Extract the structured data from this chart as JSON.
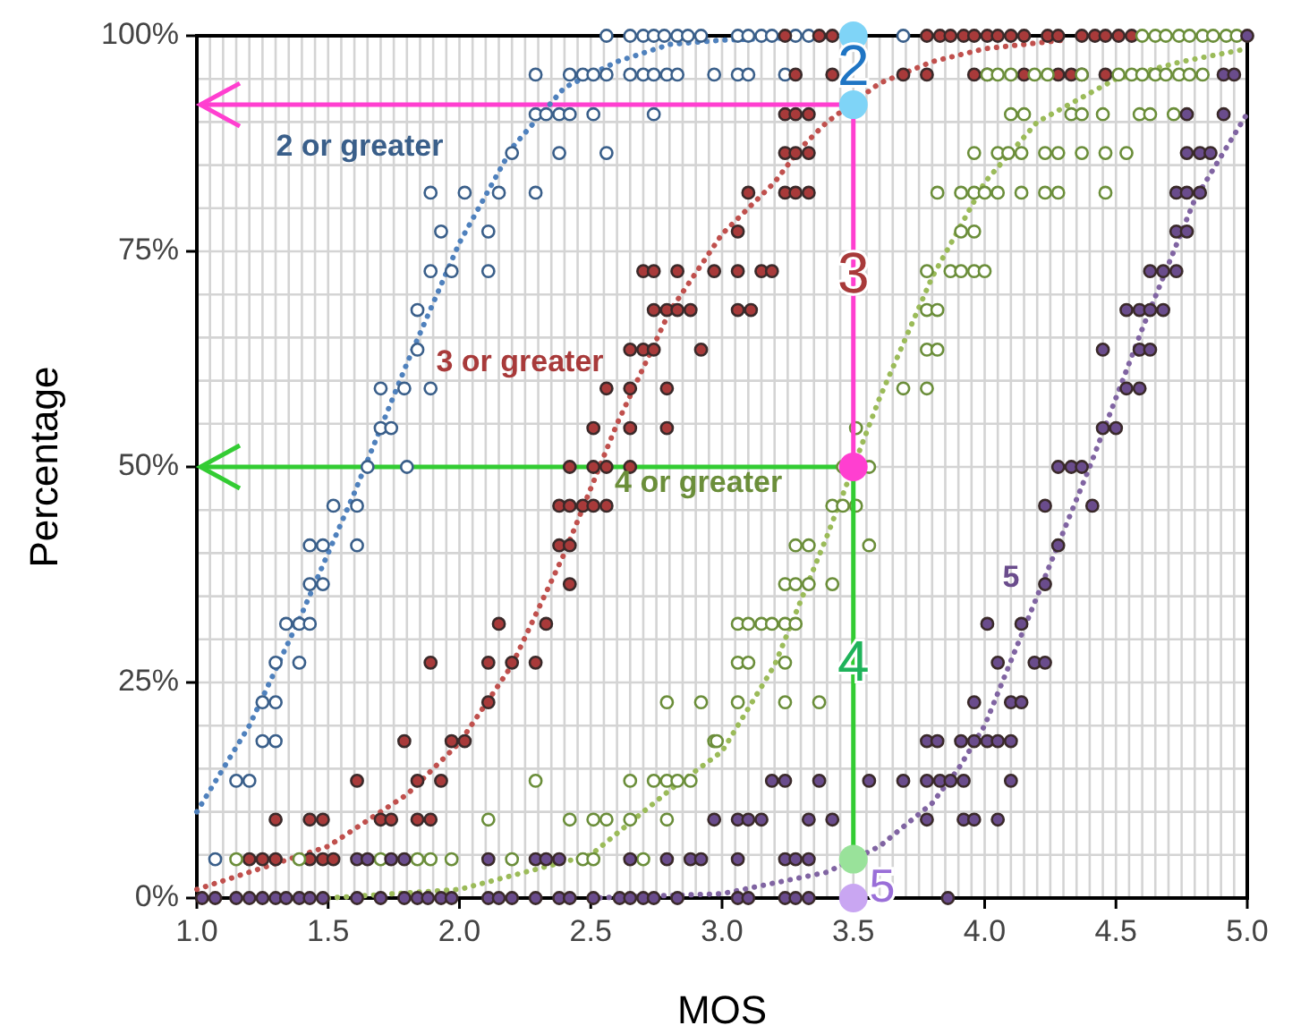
{
  "chart_data": {
    "type": "scatter",
    "xlabel": "MOS",
    "ylabel": "Percentage",
    "xlim": [
      1,
      5
    ],
    "ylim": [
      0,
      100
    ],
    "xticks": [
      {
        "value": 1,
        "label": "1.0"
      },
      {
        "value": 1.5,
        "label": "1.5"
      },
      {
        "value": 2,
        "label": "2.0"
      },
      {
        "value": 2.5,
        "label": "2.5"
      },
      {
        "value": 3,
        "label": "3.0"
      },
      {
        "value": 3.5,
        "label": "3.5"
      },
      {
        "value": 4,
        "label": "4.0"
      },
      {
        "value": 4.5,
        "label": "4.5"
      },
      {
        "value": 5,
        "label": "5.0"
      },
      {
        "value": 1.05,
        "label": null
      },
      {
        "value": 1.1,
        "label": null
      },
      {
        "value": 1.15,
        "label": null
      },
      {
        "value": 1.2,
        "label": null
      },
      {
        "value": 1.25,
        "label": null
      },
      {
        "value": 1.3,
        "label": null
      },
      {
        "value": 1.35,
        "label": null
      },
      {
        "value": 1.4,
        "label": null
      },
      {
        "value": 1.45,
        "label": null
      },
      {
        "value": 1.55,
        "label": null
      },
      {
        "value": 1.6,
        "label": null
      },
      {
        "value": 1.65,
        "label": null
      },
      {
        "value": 1.7,
        "label": null
      },
      {
        "value": 1.75,
        "label": null
      },
      {
        "value": 1.8,
        "label": null
      },
      {
        "value": 1.85,
        "label": null
      },
      {
        "value": 1.9,
        "label": null
      },
      {
        "value": 1.95,
        "label": null
      },
      {
        "value": 2.05,
        "label": null
      },
      {
        "value": 2.1,
        "label": null
      },
      {
        "value": 2.15,
        "label": null
      },
      {
        "value": 2.2,
        "label": null
      },
      {
        "value": 2.25,
        "label": null
      },
      {
        "value": 2.3,
        "label": null
      },
      {
        "value": 2.35,
        "label": null
      },
      {
        "value": 2.4,
        "label": null
      },
      {
        "value": 2.45,
        "label": null
      },
      {
        "value": 2.55,
        "label": null
      },
      {
        "value": 2.6,
        "label": null
      },
      {
        "value": 2.65,
        "label": null
      },
      {
        "value": 2.7,
        "label": null
      },
      {
        "value": 2.75,
        "label": null
      },
      {
        "value": 2.8,
        "label": null
      },
      {
        "value": 2.85,
        "label": null
      },
      {
        "value": 2.9,
        "label": null
      },
      {
        "value": 2.95,
        "label": null
      },
      {
        "value": 3.05,
        "label": null
      },
      {
        "value": 3.1,
        "label": null
      },
      {
        "value": 3.15,
        "label": null
      },
      {
        "value": 3.2,
        "label": null
      },
      {
        "value": 3.25,
        "label": null
      },
      {
        "value": 3.3,
        "label": null
      },
      {
        "value": 3.35,
        "label": null
      },
      {
        "value": 3.4,
        "label": null
      },
      {
        "value": 3.45,
        "label": null
      },
      {
        "value": 3.55,
        "label": null
      },
      {
        "value": 3.6,
        "label": null
      },
      {
        "value": 3.65,
        "label": null
      },
      {
        "value": 3.7,
        "label": null
      },
      {
        "value": 3.75,
        "label": null
      },
      {
        "value": 3.8,
        "label": null
      },
      {
        "value": 3.85,
        "label": null
      },
      {
        "value": 3.9,
        "label": null
      },
      {
        "value": 3.95,
        "label": null
      },
      {
        "value": 4.05,
        "label": null
      },
      {
        "value": 4.1,
        "label": null
      },
      {
        "value": 4.15,
        "label": null
      },
      {
        "value": 4.2,
        "label": null
      },
      {
        "value": 4.25,
        "label": null
      },
      {
        "value": 4.3,
        "label": null
      },
      {
        "value": 4.35,
        "label": null
      },
      {
        "value": 4.4,
        "label": null
      },
      {
        "value": 4.45,
        "label": null
      },
      {
        "value": 4.55,
        "label": null
      },
      {
        "value": 4.6,
        "label": null
      },
      {
        "value": 4.65,
        "label": null
      },
      {
        "value": 4.7,
        "label": null
      },
      {
        "value": 4.75,
        "label": null
      },
      {
        "value": 4.8,
        "label": null
      },
      {
        "value": 4.85,
        "label": null
      },
      {
        "value": 4.9,
        "label": null
      },
      {
        "value": 4.95,
        "label": null
      }
    ],
    "yticks": [
      {
        "value": 0,
        "label": "0%"
      },
      {
        "value": 25,
        "label": "25%"
      },
      {
        "value": 50,
        "label": "50%"
      },
      {
        "value": 75,
        "label": "75%"
      },
      {
        "value": 100,
        "label": "100%"
      },
      {
        "value": 5,
        "label": null
      },
      {
        "value": 10,
        "label": null
      },
      {
        "value": 15,
        "label": null
      },
      {
        "value": 20,
        "label": null
      },
      {
        "value": 30,
        "label": null
      },
      {
        "value": 35,
        "label": null
      },
      {
        "value": 40,
        "label": null
      },
      {
        "value": 45,
        "label": null
      },
      {
        "value": 55,
        "label": null
      },
      {
        "value": 60,
        "label": null
      },
      {
        "value": 65,
        "label": null
      },
      {
        "value": 70,
        "label": null
      },
      {
        "value": 80,
        "label": null
      },
      {
        "value": 85,
        "label": null
      },
      {
        "value": 90,
        "label": null
      },
      {
        "value": 95,
        "label": null
      }
    ],
    "grid": true,
    "ref_lines": [
      {
        "axis": "y",
        "value": 92,
        "color": "#ff3fd0"
      },
      {
        "axis": "y",
        "value": 50,
        "color": "#33cc33"
      }
    ],
    "annotations": [
      "2",
      "3",
      "4",
      "5"
    ],
    "series": [
      {
        "type": "line",
        "color": "#4f81bd",
        "line_style": "dotted",
        "marker": "none",
        "x": [
          1.0,
          1.2,
          1.4,
          1.6,
          1.8,
          2.0,
          2.2,
          2.4,
          2.6,
          2.8,
          3.0,
          3.5
        ],
        "values": [
          10,
          20,
          33,
          47,
          62,
          76,
          87,
          94,
          97,
          99,
          99.5,
          100
        ]
      },
      {
        "type": "line",
        "color": "#c0504d",
        "line_style": "dotted",
        "marker": "none",
        "x": [
          1.0,
          1.5,
          1.8,
          2.0,
          2.2,
          2.4,
          2.6,
          2.8,
          3.0,
          3.2,
          3.3,
          3.4,
          3.6,
          3.8,
          4.0,
          4.3
        ],
        "values": [
          1,
          6,
          12,
          18,
          27,
          40,
          55,
          68,
          77,
          83,
          87,
          90,
          94.5,
          97,
          98.5,
          99.5
        ]
      },
      {
        "type": "line",
        "color": "#9bbb59",
        "line_style": "dotted",
        "marker": "none",
        "x": [
          1.5,
          2.0,
          2.5,
          2.8,
          3.0,
          3.2,
          3.4,
          3.5,
          3.6,
          3.8,
          4.0,
          4.2,
          4.5,
          4.75,
          5.0
        ],
        "values": [
          0,
          1,
          5,
          12.5,
          17,
          27,
          42,
          50,
          58,
          72,
          83,
          90,
          95,
          97,
          98.5
        ]
      },
      {
        "type": "line",
        "color": "#8064a2",
        "line_style": "dotted",
        "marker": "none",
        "x": [
          2.5,
          3.0,
          3.4,
          3.6,
          3.8,
          3.9,
          4.0,
          4.2,
          4.4,
          4.6,
          4.8,
          5.0
        ],
        "values": [
          0,
          0.5,
          3,
          6,
          11,
          15,
          20,
          35,
          50,
          66,
          81,
          91
        ]
      },
      {
        "name": "2 or greater",
        "color": "#3a5f8a",
        "marker": "circle",
        "x": [
          2.56,
          2.65,
          2.7,
          2.74,
          2.78,
          2.83,
          2.87,
          2.92,
          3.06,
          3.1,
          3.15,
          3.19,
          3.28,
          3.33,
          3.69,
          2.29,
          2.42,
          2.47,
          2.51,
          2.56,
          2.65,
          2.7,
          2.74,
          2.79,
          2.83,
          2.97,
          3.06,
          3.1,
          3.24,
          2.29,
          2.33,
          2.38,
          2.42,
          2.51,
          2.74,
          2.2,
          2.38,
          2.56,
          1.89,
          2.02,
          2.15,
          2.29,
          1.93,
          2.11,
          1.89,
          1.97,
          2.11,
          1.84,
          1.84,
          1.7,
          1.79,
          1.89,
          1.7,
          1.74,
          1.65,
          1.8,
          1.52,
          1.61,
          1.43,
          1.48,
          1.61,
          1.43,
          1.48,
          1.34,
          1.39,
          1.43,
          1.3,
          1.39,
          1.25,
          1.3,
          1.25,
          1.3,
          1.15,
          1.2,
          1.07
        ],
        "values": [
          100,
          100,
          100,
          100,
          100,
          100,
          100,
          100,
          100,
          100,
          100,
          100,
          100,
          100,
          100,
          95.5,
          95.5,
          95.5,
          95.5,
          95.5,
          95.5,
          95.5,
          95.5,
          95.5,
          95.5,
          95.5,
          95.5,
          95.5,
          95.5,
          90.9,
          90.9,
          90.9,
          90.9,
          90.9,
          90.9,
          86.4,
          86.4,
          86.4,
          81.8,
          81.8,
          81.8,
          81.8,
          77.3,
          77.3,
          72.7,
          72.7,
          72.7,
          68.2,
          63.6,
          59.1,
          59.1,
          59.1,
          54.5,
          54.5,
          50,
          50,
          45.5,
          45.5,
          40.9,
          40.9,
          40.9,
          36.4,
          36.4,
          31.8,
          31.8,
          31.8,
          27.3,
          27.3,
          22.7,
          22.7,
          18.2,
          18.2,
          13.6,
          13.6,
          4.5
        ]
      },
      {
        "name": "3 or greater",
        "color": "#a83a3a",
        "marker": "circle",
        "x": [
          3.24,
          3.37,
          3.42,
          3.78,
          3.83,
          3.87,
          3.92,
          3.96,
          4.01,
          4.05,
          4.1,
          4.15,
          4.24,
          4.28,
          4.37,
          4.42,
          4.46,
          4.51,
          4.56,
          3.28,
          3.42,
          3.69,
          3.78,
          3.96,
          4.01,
          4.15,
          4.28,
          4.33,
          4.37,
          4.46,
          3.24,
          3.28,
          3.33,
          3.24,
          3.28,
          3.33,
          3.1,
          3.24,
          3.28,
          3.33,
          3.06,
          2.7,
          2.74,
          2.83,
          2.97,
          3.06,
          3.15,
          3.19,
          2.74,
          2.79,
          2.83,
          2.88,
          3.06,
          3.11,
          2.65,
          2.7,
          2.74,
          2.92,
          2.56,
          2.65,
          2.79,
          2.51,
          2.65,
          2.79,
          2.42,
          2.51,
          2.56,
          2.65,
          2.38,
          2.42,
          2.47,
          2.51,
          2.56,
          2.38,
          2.42,
          2.42,
          2.15,
          2.33,
          1.89,
          2.11,
          2.2,
          2.29,
          2.11,
          1.79,
          1.97,
          2.02,
          1.61,
          1.84,
          1.93,
          1.3,
          1.43,
          1.48,
          1.7,
          1.74,
          1.84,
          1.89,
          1.2,
          1.25,
          1.3,
          1.43,
          1.48,
          1.52
        ],
        "values": [
          100,
          100,
          100,
          100,
          100,
          100,
          100,
          100,
          100,
          100,
          100,
          100,
          100,
          100,
          100,
          100,
          100,
          100,
          100,
          95.5,
          95.5,
          95.5,
          95.5,
          95.5,
          95.5,
          95.5,
          95.5,
          95.5,
          95.5,
          95.5,
          90.9,
          90.9,
          90.9,
          86.4,
          86.4,
          86.4,
          81.8,
          81.8,
          81.8,
          81.8,
          77.3,
          72.7,
          72.7,
          72.7,
          72.7,
          72.7,
          72.7,
          72.7,
          68.2,
          68.2,
          68.2,
          68.2,
          68.2,
          68.2,
          63.6,
          63.6,
          63.6,
          63.6,
          59.1,
          59.1,
          59.1,
          54.5,
          54.5,
          54.5,
          50,
          50,
          50,
          50,
          45.5,
          45.5,
          45.5,
          45.5,
          45.5,
          40.9,
          40.9,
          36.4,
          31.8,
          31.8,
          27.3,
          27.3,
          27.3,
          27.3,
          22.7,
          18.2,
          18.2,
          18.2,
          13.6,
          13.6,
          13.6,
          9.1,
          9.1,
          9.1,
          9.1,
          9.1,
          9.1,
          9.1,
          4.5,
          4.5,
          4.5,
          4.5,
          4.5,
          4.5
        ]
      },
      {
        "name": "4 or greater",
        "color": "#6b8e3a",
        "marker": "circle",
        "x": [
          4.6,
          4.65,
          4.69,
          4.74,
          4.78,
          4.83,
          4.87,
          4.92,
          4.96,
          4.01,
          4.05,
          4.1,
          4.19,
          4.24,
          4.37,
          4.51,
          4.56,
          4.6,
          4.65,
          4.69,
          4.74,
          4.78,
          4.83,
          4.1,
          4.15,
          4.33,
          4.37,
          4.45,
          4.59,
          4.63,
          4.72,
          3.96,
          4.05,
          4.09,
          4.14,
          4.23,
          4.28,
          4.37,
          4.46,
          4.54,
          3.82,
          3.91,
          3.96,
          4.0,
          4.05,
          4.14,
          4.23,
          4.28,
          4.46,
          3.91,
          3.96,
          3.78,
          3.87,
          3.91,
          3.96,
          4.0,
          3.78,
          3.82,
          3.78,
          3.82,
          3.69,
          3.78,
          3.51,
          3.46,
          3.56,
          3.42,
          3.46,
          3.51,
          3.28,
          3.33,
          3.56,
          3.24,
          3.28,
          3.33,
          3.42,
          3.06,
          3.1,
          3.15,
          3.19,
          3.24,
          3.28,
          3.06,
          3.1,
          3.24,
          2.79,
          2.92,
          3.06,
          3.24,
          3.37,
          2.97,
          2.98,
          2.29,
          2.65,
          2.74,
          2.79,
          2.83,
          2.88,
          2.11,
          2.42,
          2.51,
          2.56,
          2.65,
          2.79,
          1.15,
          1.39,
          1.7,
          1.84,
          1.89,
          1.97,
          2.2,
          2.47,
          2.51,
          2.7
        ],
        "values": [
          100,
          100,
          100,
          100,
          100,
          100,
          100,
          100,
          100,
          95.5,
          95.5,
          95.5,
          95.5,
          95.5,
          95.5,
          95.5,
          95.5,
          95.5,
          95.5,
          95.5,
          95.5,
          95.5,
          95.5,
          90.9,
          90.9,
          90.9,
          90.9,
          90.9,
          90.9,
          90.9,
          90.9,
          86.4,
          86.4,
          86.4,
          86.4,
          86.4,
          86.4,
          86.4,
          86.4,
          86.4,
          81.8,
          81.8,
          81.8,
          81.8,
          81.8,
          81.8,
          81.8,
          81.8,
          81.8,
          77.3,
          77.3,
          72.7,
          72.7,
          72.7,
          72.7,
          72.7,
          68.2,
          68.2,
          63.6,
          63.6,
          59.1,
          59.1,
          54.5,
          50,
          50,
          45.5,
          45.5,
          45.5,
          40.9,
          40.9,
          40.9,
          36.4,
          36.4,
          36.4,
          36.4,
          31.8,
          31.8,
          31.8,
          31.8,
          31.8,
          31.8,
          27.3,
          27.3,
          27.3,
          22.7,
          22.7,
          22.7,
          22.7,
          22.7,
          18.2,
          18.2,
          13.6,
          13.6,
          13.6,
          13.6,
          13.6,
          13.6,
          9.1,
          9.1,
          9.1,
          9.1,
          9.1,
          9.1,
          4.5,
          4.5,
          4.5,
          4.5,
          4.5,
          4.5,
          4.5,
          4.5,
          4.5,
          4.5
        ]
      },
      {
        "name": "5",
        "color": "#6a4c8c",
        "marker": "circle",
        "x": [
          5.0,
          4.91,
          4.95,
          4.77,
          4.91,
          4.77,
          4.82,
          4.86,
          4.73,
          4.77,
          4.82,
          4.73,
          4.77,
          4.63,
          4.68,
          4.73,
          4.54,
          4.59,
          4.63,
          4.68,
          4.45,
          4.59,
          4.63,
          4.54,
          4.59,
          4.45,
          4.5,
          4.28,
          4.33,
          4.37,
          4.23,
          4.41,
          4.28,
          4.23,
          4.01,
          4.14,
          4.05,
          4.19,
          4.23,
          3.96,
          4.1,
          4.14,
          3.78,
          3.82,
          3.91,
          3.96,
          4.01,
          4.05,
          4.1,
          3.19,
          3.24,
          3.37,
          3.56,
          3.69,
          3.78,
          3.83,
          3.87,
          3.92,
          4.1,
          2.97,
          3.06,
          3.1,
          3.15,
          3.33,
          3.42,
          3.78,
          3.92,
          3.96,
          4.05,
          1.61,
          1.65,
          1.74,
          1.79,
          2.11,
          2.29,
          2.33,
          2.38,
          2.65,
          2.79,
          2.88,
          2.92,
          3.06,
          3.24,
          3.28,
          3.33,
          1.02,
          1.07,
          1.15,
          1.2,
          1.25,
          1.3,
          1.34,
          1.39,
          1.43,
          1.48,
          1.61,
          1.7,
          1.79,
          1.84,
          1.88,
          1.93,
          1.97,
          2.11,
          2.15,
          2.2,
          2.29,
          2.38,
          2.42,
          2.51,
          2.61,
          2.65,
          2.7,
          2.74,
          2.83,
          3.06,
          3.1,
          3.24,
          3.28,
          3.33,
          3.86
        ],
        "values": [
          100,
          95.5,
          95.5,
          90.9,
          90.9,
          86.4,
          86.4,
          86.4,
          81.8,
          81.8,
          81.8,
          77.3,
          77.3,
          72.7,
          72.7,
          72.7,
          68.2,
          68.2,
          68.2,
          68.2,
          63.6,
          63.6,
          63.6,
          59.1,
          59.1,
          54.5,
          54.5,
          50,
          50,
          50,
          45.5,
          45.5,
          40.9,
          36.4,
          31.8,
          31.8,
          27.3,
          27.3,
          27.3,
          22.7,
          22.7,
          22.7,
          18.2,
          18.2,
          18.2,
          18.2,
          18.2,
          18.2,
          18.2,
          13.6,
          13.6,
          13.6,
          13.6,
          13.6,
          13.6,
          13.6,
          13.6,
          13.6,
          13.6,
          9.1,
          9.1,
          9.1,
          9.1,
          9.1,
          9.1,
          9.1,
          9.1,
          9.1,
          9.1,
          4.5,
          4.5,
          4.5,
          4.5,
          4.5,
          4.5,
          4.5,
          4.5,
          4.5,
          4.5,
          4.5,
          4.5,
          4.5,
          4.5,
          4.5,
          4.5,
          0,
          0,
          0,
          0,
          0,
          0,
          0,
          0,
          0,
          0,
          0,
          0,
          0,
          0,
          0,
          0,
          0,
          0,
          0,
          0,
          0,
          0,
          0,
          0,
          0,
          0,
          0,
          0,
          0,
          0,
          0,
          0,
          0,
          0,
          0
        ]
      },
      {
        "type": "line",
        "color": "#ff3fd0",
        "line_style": "solid",
        "marker": "none",
        "x": [
          3.5,
          3.5
        ],
        "values": [
          92,
          50
        ]
      },
      {
        "type": "line",
        "color": "#33cc33",
        "line_style": "solid",
        "marker": "none",
        "x": [
          3.5,
          3.5
        ],
        "values": [
          50,
          4.5
        ]
      },
      {
        "color": "#7fd4f7",
        "marker": "circle",
        "x": [
          3.5,
          3.5
        ],
        "values": [
          100,
          92
        ]
      },
      {
        "color": "#ff3fd0",
        "marker": "circle",
        "x": [
          3.5
        ],
        "values": [
          50
        ]
      },
      {
        "color": "#99e29a",
        "marker": "circle",
        "x": [
          3.5
        ],
        "values": [
          4.5
        ]
      },
      {
        "color": "#c9a6f2",
        "marker": "circle",
        "x": [
          3.5
        ],
        "values": [
          0
        ]
      }
    ]
  }
}
